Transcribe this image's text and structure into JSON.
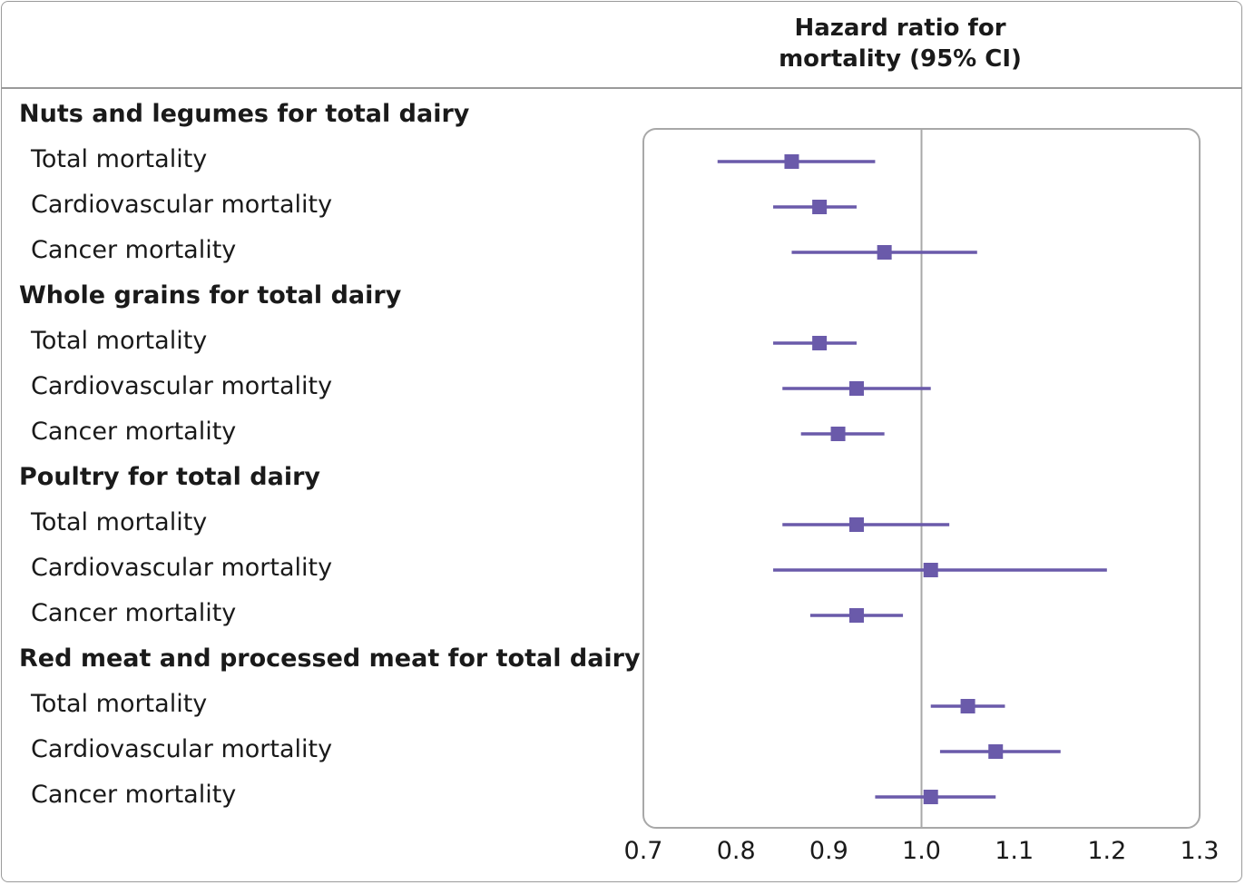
{
  "header": {
    "title_line1": "Hazard ratio for",
    "title_line2": "mortality (95% CI)"
  },
  "colors": {
    "marker": "#6a5aaa",
    "reference_line": "#a8a8a8",
    "box": "#a8a8a8"
  },
  "chart_data": {
    "type": "forest",
    "title": "Hazard ratio for mortality (95% CI)",
    "xlim": [
      0.7,
      1.3
    ],
    "xticks": [
      "0.7",
      "0.8",
      "0.9",
      "1.0",
      "1.1",
      "1.2",
      "1.3"
    ],
    "reference_value": 1.0,
    "groups": [
      {
        "label": "Nuts and legumes for total dairy",
        "rows": [
          {
            "label": "Total mortality",
            "hr": 0.86,
            "lower": 0.78,
            "upper": 0.95
          },
          {
            "label": "Cardiovascular mortality",
            "hr": 0.89,
            "lower": 0.84,
            "upper": 0.93
          },
          {
            "label": "Cancer mortality",
            "hr": 0.96,
            "lower": 0.86,
            "upper": 1.06
          }
        ]
      },
      {
        "label": "Whole grains for total dairy",
        "rows": [
          {
            "label": "Total mortality",
            "hr": 0.89,
            "lower": 0.84,
            "upper": 0.93
          },
          {
            "label": "Cardiovascular mortality",
            "hr": 0.93,
            "lower": 0.85,
            "upper": 1.01
          },
          {
            "label": "Cancer mortality",
            "hr": 0.91,
            "lower": 0.87,
            "upper": 0.96
          }
        ]
      },
      {
        "label": "Poultry for total dairy",
        "rows": [
          {
            "label": "Total mortality",
            "hr": 0.93,
            "lower": 0.85,
            "upper": 1.03
          },
          {
            "label": "Cardiovascular mortality",
            "hr": 1.01,
            "lower": 0.84,
            "upper": 1.2
          },
          {
            "label": "Cancer mortality",
            "hr": 0.93,
            "lower": 0.88,
            "upper": 0.98
          }
        ]
      },
      {
        "label": "Red meat and processed meat for total dairy",
        "rows": [
          {
            "label": "Total mortality",
            "hr": 1.05,
            "lower": 1.01,
            "upper": 1.09
          },
          {
            "label": "Cardiovascular mortality",
            "hr": 1.08,
            "lower": 1.02,
            "upper": 1.15
          },
          {
            "label": "Cancer mortality",
            "hr": 1.01,
            "lower": 0.95,
            "upper": 1.08
          }
        ]
      }
    ]
  }
}
